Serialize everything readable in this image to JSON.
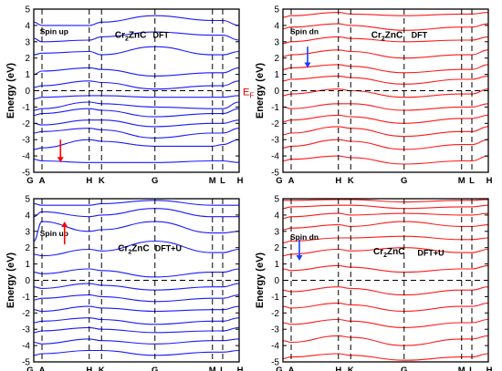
{
  "chart_data": [
    {
      "type": "line",
      "ylabel": "Energy (eV)",
      "ylim": [
        -5,
        5
      ],
      "ytick_step": 1,
      "high_symmetry_points": [
        "G",
        "A",
        "H",
        "K",
        "G",
        "M",
        "L",
        "H"
      ],
      "fermi_label": "E",
      "fermi_sub": "F",
      "spin_label": "Spin up",
      "spin_dir": "up",
      "formula": {
        "pre": "Cr",
        "sub": "2",
        "post": "ZnC"
      },
      "method": "DFT",
      "color": "#1a1aff",
      "arrow_color": "#ff0000",
      "bands": [
        {
          "name": "b1",
          "values": [
            -4.2,
            -4.3,
            -4.4,
            -4.4,
            -4.4,
            -4.3,
            -4.3,
            -4.4
          ]
        },
        {
          "name": "b2",
          "values": [
            -3.6,
            -3.5,
            -3.0,
            -3.1,
            -3.4,
            -3.4,
            -3.3,
            -3.0
          ]
        },
        {
          "name": "b3",
          "values": [
            -2.6,
            -2.5,
            -2.3,
            -2.4,
            -2.9,
            -2.6,
            -2.6,
            -2.3
          ]
        },
        {
          "name": "b4",
          "values": [
            -2.0,
            -2.1,
            -1.8,
            -1.8,
            -2.2,
            -2.0,
            -2.0,
            -1.8
          ]
        },
        {
          "name": "b5",
          "values": [
            -1.5,
            -1.4,
            -1.1,
            -1.2,
            -1.6,
            -1.4,
            -1.4,
            -1.1
          ]
        },
        {
          "name": "b6",
          "values": [
            -1.2,
            -1.1,
            -0.7,
            -0.8,
            -1.0,
            -1.1,
            -1.1,
            -0.7
          ]
        },
        {
          "name": "b7",
          "values": [
            -0.5,
            -0.4,
            -0.3,
            -0.3,
            -0.4,
            -0.4,
            -0.4,
            -0.3
          ]
        },
        {
          "name": "b8",
          "values": [
            0.2,
            0.3,
            0.6,
            0.5,
            0.1,
            0.3,
            0.3,
            0.6
          ]
        },
        {
          "name": "b9",
          "values": [
            1.0,
            1.2,
            1.4,
            1.3,
            0.9,
            1.1,
            1.1,
            1.4
          ]
        },
        {
          "name": "b10",
          "values": [
            2.2,
            2.3,
            2.4,
            2.2,
            2.7,
            2.2,
            2.2,
            2.4
          ]
        },
        {
          "name": "b11",
          "values": [
            3.2,
            3.0,
            3.1,
            3.3,
            3.6,
            3.4,
            3.4,
            3.1
          ]
        },
        {
          "name": "b12",
          "values": [
            4.2,
            4.0,
            4.0,
            4.2,
            4.6,
            4.3,
            4.3,
            4.0
          ]
        }
      ]
    },
    {
      "type": "line",
      "ylabel": "Energy (eV)",
      "ylim": [
        -5,
        5
      ],
      "ytick_step": 1,
      "high_symmetry_points": [
        "G",
        "A",
        "H",
        "K",
        "G",
        "M",
        "L",
        "H"
      ],
      "spin_label": "Spin dn",
      "spin_dir": "down",
      "formula": {
        "pre": "Cr",
        "sub": "2",
        "post": "ZnC"
      },
      "method": "DFT",
      "color": "#ff1a1a",
      "arrow_color": "#1a3cff",
      "bands": [
        {
          "name": "b1",
          "values": [
            -4.3,
            -4.2,
            -4.0,
            -4.1,
            -4.5,
            -4.3,
            -4.3,
            -4.0
          ]
        },
        {
          "name": "b2",
          "values": [
            -3.5,
            -3.4,
            -3.0,
            -3.1,
            -3.6,
            -3.3,
            -3.3,
            -3.0
          ]
        },
        {
          "name": "b3",
          "values": [
            -2.7,
            -2.6,
            -2.2,
            -2.3,
            -2.8,
            -2.5,
            -2.5,
            -2.2
          ]
        },
        {
          "name": "b4",
          "values": [
            -1.9,
            -1.8,
            -1.5,
            -1.6,
            -2.0,
            -1.7,
            -1.7,
            -1.5
          ]
        },
        {
          "name": "b5",
          "values": [
            -1.0,
            -1.1,
            -0.8,
            -0.8,
            -1.2,
            -1.0,
            -1.0,
            -0.8
          ]
        },
        {
          "name": "b6",
          "values": [
            -0.3,
            -0.2,
            0.1,
            0.0,
            -0.4,
            -0.2,
            -0.2,
            0.1
          ]
        },
        {
          "name": "b7",
          "values": [
            0.6,
            0.7,
            0.9,
            0.8,
            0.4,
            0.7,
            0.7,
            0.9
          ]
        },
        {
          "name": "b8",
          "values": [
            1.3,
            1.4,
            1.6,
            1.5,
            1.1,
            1.3,
            1.3,
            1.6
          ]
        },
        {
          "name": "b9",
          "values": [
            2.1,
            2.2,
            2.5,
            2.4,
            2.0,
            2.2,
            2.2,
            2.5
          ]
        },
        {
          "name": "b10",
          "values": [
            2.9,
            3.0,
            3.3,
            3.2,
            3.0,
            3.1,
            3.1,
            3.3
          ]
        },
        {
          "name": "b11",
          "values": [
            3.8,
            3.9,
            4.1,
            4.0,
            3.7,
            3.9,
            3.9,
            4.1
          ]
        },
        {
          "name": "b12",
          "values": [
            4.5,
            4.6,
            4.8,
            4.7,
            4.6,
            4.7,
            4.7,
            4.8
          ]
        }
      ]
    },
    {
      "type": "line",
      "ylabel": "Energy (eV)",
      "ylim": [
        -5,
        5
      ],
      "ytick_step": 1,
      "high_symmetry_points": [
        "G",
        "A",
        "H",
        "K",
        "G",
        "M",
        "L",
        "H"
      ],
      "spin_label": "Spin up",
      "spin_dir": "up",
      "formula": {
        "pre": "Cr",
        "sub": "2",
        "post": "ZnC"
      },
      "method": "DFT+U",
      "color": "#1a1aff",
      "arrow_color": "#ff0000",
      "bands": [
        {
          "name": "b1",
          "values": [
            -4.6,
            -4.5,
            -4.3,
            -4.3,
            -4.6,
            -4.4,
            -4.4,
            -4.3
          ]
        },
        {
          "name": "b2",
          "values": [
            -3.8,
            -3.9,
            -3.6,
            -3.7,
            -3.9,
            -3.7,
            -3.7,
            -3.6
          ]
        },
        {
          "name": "b3",
          "values": [
            -3.2,
            -3.1,
            -2.9,
            -3.0,
            -3.2,
            -3.1,
            -3.1,
            -2.9
          ]
        },
        {
          "name": "b4",
          "values": [
            -2.6,
            -2.5,
            -2.3,
            -2.4,
            -2.7,
            -2.5,
            -2.5,
            -2.3
          ]
        },
        {
          "name": "b5",
          "values": [
            -1.8,
            -1.9,
            -1.6,
            -1.7,
            -1.9,
            -1.8,
            -1.8,
            -1.6
          ]
        },
        {
          "name": "b6",
          "values": [
            -1.2,
            -1.1,
            -0.9,
            -1.0,
            -1.3,
            -1.1,
            -1.1,
            -0.9
          ]
        },
        {
          "name": "b7",
          "values": [
            -0.4,
            -0.5,
            -0.2,
            -0.3,
            -0.6,
            -0.4,
            -0.4,
            -0.2
          ]
        },
        {
          "name": "b8",
          "values": [
            0.5,
            0.4,
            0.7,
            0.6,
            0.2,
            0.5,
            0.5,
            0.7
          ]
        },
        {
          "name": "b9",
          "values": [
            1.6,
            1.5,
            1.9,
            1.8,
            2.4,
            1.7,
            1.7,
            1.9
          ]
        },
        {
          "name": "b10",
          "values": [
            2.4,
            3.6,
            3.0,
            3.1,
            3.6,
            2.9,
            2.9,
            3.0
          ]
        },
        {
          "name": "b11",
          "values": [
            3.9,
            4.2,
            3.9,
            4.0,
            4.4,
            3.9,
            3.9,
            3.9
          ]
        },
        {
          "name": "b12",
          "values": [
            4.7,
            4.6,
            4.6,
            4.7,
            4.9,
            4.6,
            4.6,
            4.6
          ]
        }
      ]
    },
    {
      "type": "line",
      "ylabel": "Energy (eV)",
      "ylim": [
        -5,
        5
      ],
      "ytick_step": 1,
      "high_symmetry_points": [
        "G",
        "A",
        "H",
        "K",
        "G",
        "M",
        "L",
        "H"
      ],
      "spin_label": "Spin dn",
      "spin_dir": "down",
      "formula": {
        "pre": "Cr",
        "sub": "2",
        "post": "ZnC"
      },
      "method": "DFT+U",
      "color": "#ff1a1a",
      "arrow_color": "#1a3cff",
      "bands": [
        {
          "name": "b1",
          "values": [
            -4.8,
            -4.7,
            -4.5,
            -4.6,
            -4.9,
            -4.7,
            -4.7,
            -4.5
          ]
        },
        {
          "name": "b2",
          "values": [
            -3.7,
            -3.8,
            -3.4,
            -3.5,
            -4.0,
            -3.6,
            -3.6,
            -3.4
          ]
        },
        {
          "name": "b3",
          "values": [
            -2.6,
            -2.7,
            -2.4,
            -2.5,
            -2.9,
            -2.6,
            -2.6,
            -2.4
          ]
        },
        {
          "name": "b4",
          "values": [
            -1.6,
            -1.7,
            -1.4,
            -1.5,
            -1.9,
            -1.6,
            -1.6,
            -1.4
          ]
        },
        {
          "name": "b5",
          "values": [
            -0.6,
            -0.7,
            -0.4,
            -0.5,
            -0.9,
            -0.6,
            -0.6,
            -0.4
          ]
        },
        {
          "name": "b6",
          "values": [
            0.7,
            0.6,
            0.9,
            0.8,
            0.5,
            0.7,
            0.7,
            0.9
          ]
        },
        {
          "name": "b7",
          "values": [
            1.5,
            1.6,
            1.9,
            1.8,
            2.0,
            1.7,
            1.7,
            1.9
          ]
        },
        {
          "name": "b8",
          "values": [
            2.3,
            2.4,
            2.6,
            2.6,
            2.7,
            2.5,
            2.5,
            2.6
          ]
        },
        {
          "name": "b9",
          "values": [
            3.1,
            3.2,
            3.4,
            3.3,
            3.6,
            3.3,
            3.3,
            3.4
          ]
        },
        {
          "name": "b10",
          "values": [
            3.8,
            3.9,
            4.1,
            4.0,
            4.1,
            4.0,
            4.0,
            4.1
          ]
        },
        {
          "name": "b11",
          "values": [
            4.4,
            4.5,
            4.6,
            4.6,
            4.4,
            4.5,
            4.5,
            4.6
          ]
        },
        {
          "name": "b12",
          "values": [
            4.9,
            4.9,
            4.95,
            4.95,
            4.8,
            4.9,
            4.9,
            4.95
          ]
        }
      ]
    }
  ]
}
